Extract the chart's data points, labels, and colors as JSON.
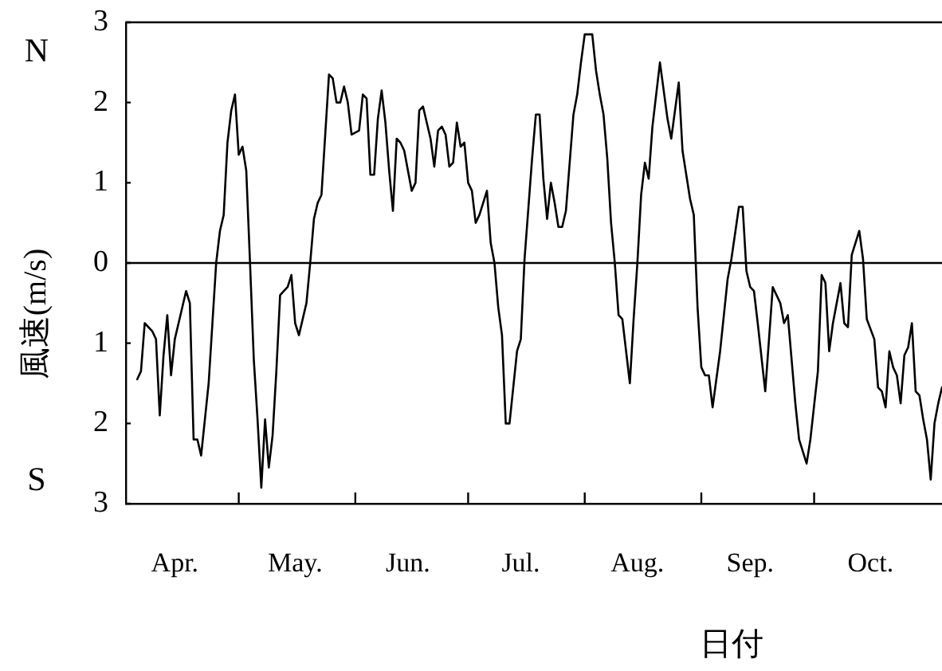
{
  "chart_data": {
    "type": "line",
    "xlabel": "日付",
    "ylabel": "風速(m/s)",
    "annotations": [
      "N",
      "S"
    ],
    "x": [
      "--04-04",
      "--04-05",
      "--04-06",
      "--04-08",
      "--04-09",
      "--04-10",
      "--04-11",
      "--04-12",
      "--04-13",
      "--04-14",
      "--04-15",
      "--04-17",
      "--04-18",
      "--04-19",
      "--04-20",
      "--04-21",
      "--04-23",
      "--04-25",
      "--04-26",
      "--04-27",
      "--04-28",
      "--04-29",
      "--04-30",
      "--05-01",
      "--05-02",
      "--05-03",
      "--05-04",
      "--05-05",
      "--05-06",
      "--05-07",
      "--05-08",
      "--05-09",
      "--05-10",
      "--05-11",
      "--05-12",
      "--05-13",
      "--05-14",
      "--05-15",
      "--05-16",
      "--05-17",
      "--05-19",
      "--05-20",
      "--05-21",
      "--05-22",
      "--05-23",
      "--05-25",
      "--05-26",
      "--05-27",
      "--05-28",
      "--05-29",
      "--05-30",
      "--05-31",
      "--06-02",
      "--06-03",
      "--06-04",
      "--06-05",
      "--06-06",
      "--06-07",
      "--06-08",
      "--06-09",
      "--06-10",
      "--06-11",
      "--06-12",
      "--06-13",
      "--06-14",
      "--06-16",
      "--06-17",
      "--06-18",
      "--06-19",
      "--06-21",
      "--06-22",
      "--06-23",
      "--06-24",
      "--06-25",
      "--06-26",
      "--06-27",
      "--06-28",
      "--06-29",
      "--06-30",
      "--07-01",
      "--07-02",
      "--07-03",
      "--07-04",
      "--07-06",
      "--07-07",
      "--07-08",
      "--07-09",
      "--07-10",
      "--07-11",
      "--07-12",
      "--07-14",
      "--07-15",
      "--07-16",
      "--07-18",
      "--07-19",
      "--07-20",
      "--07-21",
      "--07-22",
      "--07-23",
      "--07-24",
      "--07-25",
      "--07-26",
      "--07-27",
      "--07-29",
      "--07-30",
      "--07-31",
      "--08-01",
      "--08-03",
      "--08-04",
      "--08-05",
      "--08-06",
      "--08-07",
      "--08-08",
      "--08-09",
      "--08-10",
      "--08-11",
      "--08-12",
      "--08-13",
      "--08-14",
      "--08-15",
      "--08-16",
      "--08-17",
      "--08-18",
      "--08-19",
      "--08-21",
      "--08-23",
      "--08-24",
      "--08-26",
      "--08-27",
      "--08-29",
      "--08-30",
      "--08-31",
      "--09-01",
      "--09-02",
      "--09-03",
      "--09-04",
      "--09-06",
      "--09-08",
      "--09-09",
      "--09-11",
      "--09-12",
      "--09-13",
      "--09-14",
      "--09-15",
      "--09-16",
      "--09-18",
      "--09-19",
      "--09-20",
      "--09-22",
      "--09-23",
      "--09-24",
      "--09-26",
      "--09-27",
      "--09-28",
      "--09-29",
      "--09-30",
      "--10-02",
      "--10-03",
      "--10-04",
      "--10-05",
      "--10-06",
      "--10-08",
      "--10-09",
      "--10-10",
      "--10-11",
      "--10-13",
      "--10-14",
      "--10-15",
      "--10-17",
      "--10-18",
      "--10-19",
      "--10-20",
      "--10-21",
      "--10-22",
      "--10-23",
      "--10-24",
      "--10-25",
      "--10-26",
      "--10-27",
      "--10-28",
      "--10-29",
      "--10-30",
      "--10-31",
      "--11-01",
      "--11-02",
      "--11-03",
      "--11-04"
    ],
    "values": [
      -1.45,
      -1.35,
      -0.75,
      -0.85,
      -0.95,
      -1.9,
      -1.15,
      -0.65,
      -1.4,
      -0.95,
      -0.75,
      -0.35,
      -0.5,
      -2.2,
      -2.2,
      -2.4,
      -1.5,
      0.0,
      0.4,
      0.6,
      1.5,
      1.9,
      2.1,
      1.35,
      1.45,
      1.15,
      0.0,
      -1.2,
      -1.95,
      -2.8,
      -1.95,
      -2.55,
      -2.15,
      -1.35,
      -0.4,
      -0.35,
      -0.3,
      -0.15,
      -0.75,
      -0.9,
      -0.5,
      0.0,
      0.55,
      0.75,
      0.85,
      2.35,
      2.3,
      2.0,
      2.0,
      2.2,
      2.0,
      1.6,
      1.65,
      2.1,
      2.05,
      1.1,
      1.1,
      1.8,
      2.15,
      1.75,
      1.15,
      0.65,
      1.55,
      1.5,
      1.4,
      0.9,
      1.0,
      1.9,
      1.95,
      1.55,
      1.2,
      1.65,
      1.7,
      1.6,
      1.2,
      1.25,
      1.75,
      1.45,
      1.5,
      1.0,
      0.9,
      0.5,
      0.6,
      0.9,
      0.25,
      0.0,
      -0.55,
      -0.9,
      -2.0,
      -2.0,
      -1.1,
      -0.95,
      0.05,
      1.3,
      1.85,
      1.85,
      1.05,
      0.55,
      1.0,
      0.75,
      0.45,
      0.45,
      0.65,
      1.85,
      2.1,
      2.5,
      2.85,
      2.85,
      2.4,
      2.1,
      1.85,
      1.3,
      0.5,
      0.0,
      -0.65,
      -0.7,
      -1.1,
      -1.5,
      -0.7,
      0.0,
      0.85,
      1.25,
      1.05,
      1.7,
      2.5,
      1.8,
      1.55,
      2.25,
      1.4,
      0.8,
      0.6,
      -0.55,
      -1.3,
      -1.4,
      -1.4,
      -1.8,
      -1.1,
      -0.2,
      0.05,
      0.7,
      0.7,
      -0.1,
      -0.3,
      -0.35,
      -0.75,
      -1.6,
      -0.95,
      -0.3,
      -0.5,
      -0.75,
      -0.65,
      -1.75,
      -2.2,
      -2.35,
      -2.5,
      -2.2,
      -1.35,
      -0.15,
      -0.25,
      -1.1,
      -0.75,
      -0.25,
      -0.75,
      -0.8,
      0.1,
      0.4,
      0.05,
      -0.7,
      -0.95,
      -1.55,
      -1.6,
      -1.8,
      -1.1,
      -1.3,
      -1.4,
      -1.75,
      -1.15,
      -1.05,
      -0.75,
      -1.6,
      -1.65,
      -1.95,
      -2.2,
      -2.7,
      -2.0,
      -1.75,
      -1.55
    ],
    "color": "#000000",
    "xlim": [
      "--04-01",
      "--11-04"
    ],
    "xticks": [
      {
        "value": "--04-14",
        "label": "Apr."
      },
      {
        "value": "--05-01",
        "label": null
      },
      {
        "value": "--05-16",
        "label": "May."
      },
      {
        "value": "--06-01",
        "label": null
      },
      {
        "value": "--06-15",
        "label": "Jun."
      },
      {
        "value": "--07-01",
        "label": null
      },
      {
        "value": "--07-15",
        "label": "Jul."
      },
      {
        "value": "--08-01",
        "label": null
      },
      {
        "value": "--08-15",
        "label": "Aug."
      },
      {
        "value": "--09-01",
        "label": null
      },
      {
        "value": "--09-14",
        "label": "Sep."
      },
      {
        "value": "--10-01",
        "label": null
      },
      {
        "value": "--10-16",
        "label": "Oct."
      }
    ],
    "ylim": [
      -3,
      3
    ],
    "yticks": [
      3,
      2,
      1,
      0,
      {
        "value": -1,
        "label": "1"
      },
      {
        "value": -2,
        "label": "2"
      },
      {
        "value": -3,
        "label": "3"
      }
    ],
    "ref_lines": [
      {
        "axis": "y",
        "value": 0,
        "color": "#000000"
      }
    ],
    "legend": false
  }
}
